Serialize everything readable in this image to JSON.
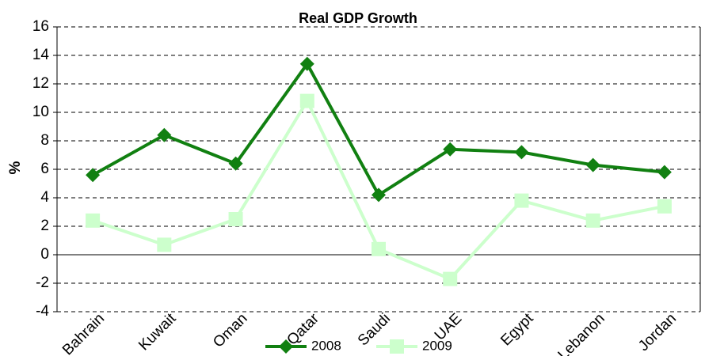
{
  "chart_data": {
    "type": "line",
    "title": "Real GDP Growth",
    "y_label": "%",
    "categories": [
      "Bahrain",
      "Kuwait",
      "Oman",
      "Qatar",
      "Saudi",
      "UAE",
      "Egypt",
      "Lebanon",
      "Jordan"
    ],
    "series": [
      {
        "name": "2008",
        "color": "#118011",
        "marker": "diamond",
        "values": [
          5.6,
          8.4,
          6.4,
          13.4,
          4.2,
          7.4,
          7.2,
          6.3,
          5.8
        ]
      },
      {
        "name": "2009",
        "color": "#ccffcc",
        "marker": "square",
        "values": [
          2.4,
          0.7,
          2.5,
          10.8,
          0.4,
          -1.7,
          3.8,
          2.4,
          3.4
        ]
      }
    ],
    "ylim": [
      -4,
      16
    ],
    "yticks": [
      -4,
      -2,
      0,
      2,
      4,
      6,
      8,
      10,
      12,
      14,
      16
    ],
    "grid": true,
    "legend": "bottom"
  }
}
